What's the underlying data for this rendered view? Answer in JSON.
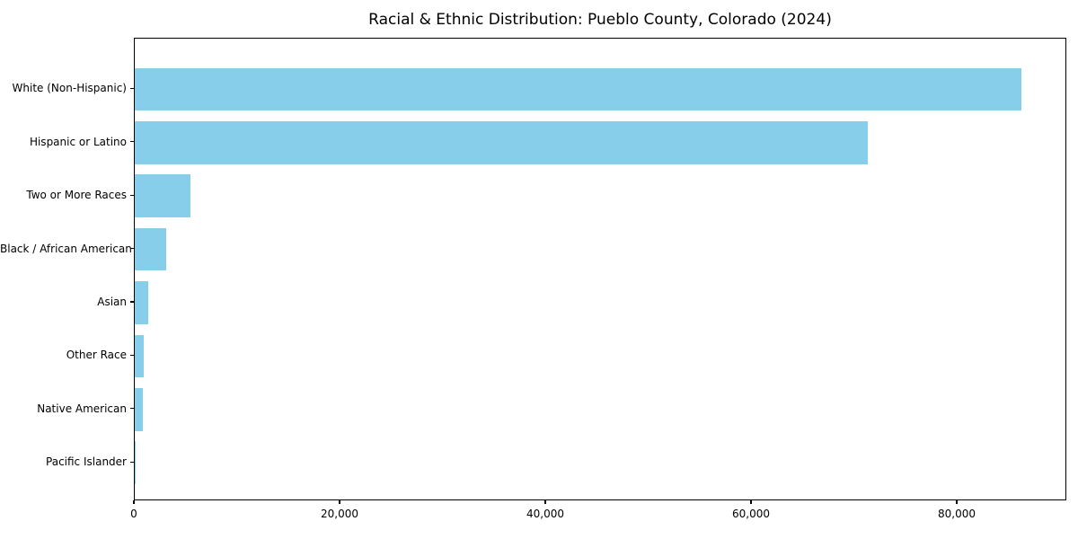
{
  "chart_data": {
    "type": "bar",
    "orientation": "horizontal",
    "title": "Racial & Ethnic Distribution: Pueblo County, Colorado (2024)",
    "categories": [
      "White (Non-Hispanic)",
      "Hispanic or Latino",
      "Two or More Races",
      "Black / African American",
      "Asian",
      "Other Race",
      "Native American",
      "Pacific Islander"
    ],
    "values": [
      86200,
      71300,
      5400,
      3100,
      1350,
      900,
      750,
      100
    ],
    "xlabel": "",
    "ylabel": "",
    "xlim": [
      0,
      90600
    ],
    "x_ticks": [
      0,
      20000,
      40000,
      60000,
      80000
    ],
    "x_tick_labels": [
      "0",
      "20,000",
      "40,000",
      "60,000",
      "80,000"
    ],
    "bar_color": "#87CEEB",
    "background_color": "#ffffff",
    "spine_color": "#000000",
    "grid": false,
    "legend": false
  }
}
